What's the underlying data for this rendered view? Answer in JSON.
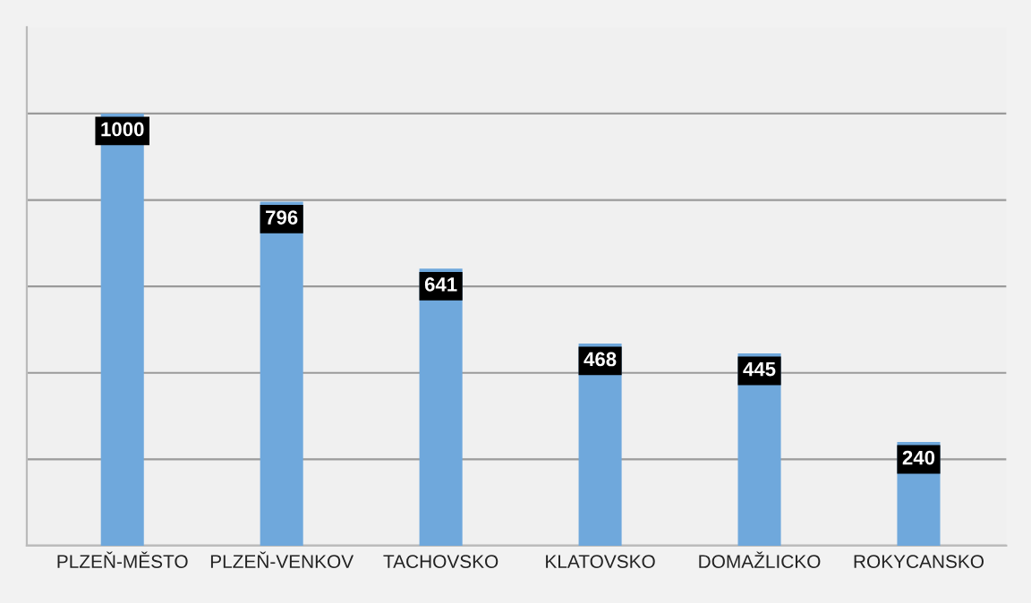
{
  "chart_data": {
    "type": "bar",
    "categories": [
      "PLZEŇ-MĚSTO",
      "PLZEŇ-VENKOV",
      "TACHOVSKO",
      "KLATOVSKO",
      "DOMAŽLICKO",
      "ROKYCANSKO"
    ],
    "values": [
      1000,
      796,
      641,
      468,
      445,
      240
    ],
    "color": "#6fa8dc",
    "data_labels": true,
    "ylim": [
      0,
      1200
    ],
    "yticks": [
      {
        "value": 0,
        "label": null
      },
      {
        "value": 200,
        "label": null
      },
      {
        "value": 400,
        "label": null
      },
      {
        "value": 600,
        "label": null
      },
      {
        "value": 800,
        "label": null
      },
      {
        "value": 1000,
        "label": null
      }
    ],
    "grid": "y",
    "tick_labels": "x"
  }
}
